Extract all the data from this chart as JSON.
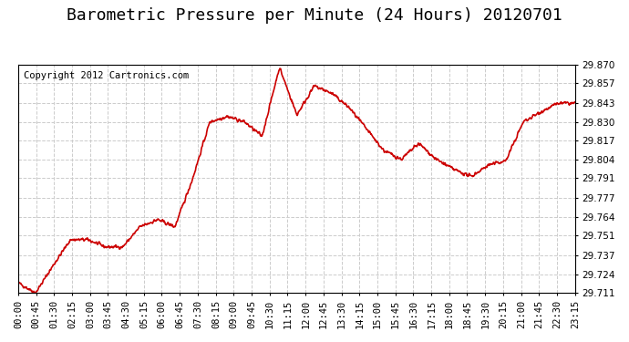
{
  "title": "Barometric Pressure per Minute (24 Hours) 20120701",
  "copyright": "Copyright 2012 Cartronics.com",
  "line_color": "#cc0000",
  "bg_color": "#ffffff",
  "plot_bg_color": "#ffffff",
  "grid_color": "#cccccc",
  "grid_style": "--",
  "ylim": [
    29.711,
    29.87
  ],
  "yticks": [
    29.711,
    29.724,
    29.737,
    29.751,
    29.764,
    29.777,
    29.791,
    29.804,
    29.817,
    29.83,
    29.843,
    29.857,
    29.87
  ],
  "xtick_labels": [
    "00:00",
    "00:45",
    "01:30",
    "02:15",
    "03:00",
    "03:45",
    "04:30",
    "05:15",
    "06:00",
    "06:45",
    "07:30",
    "08:15",
    "09:00",
    "09:45",
    "10:30",
    "11:15",
    "12:00",
    "12:45",
    "13:30",
    "14:15",
    "15:00",
    "15:45",
    "16:30",
    "17:15",
    "18:00",
    "18:45",
    "19:30",
    "20:15",
    "21:00",
    "21:45",
    "22:30",
    "23:15"
  ],
  "title_fontsize": 13,
  "tick_fontsize": 7.5,
  "copyright_fontsize": 7.5,
  "line_width": 1.2,
  "key_times": [
    0,
    45,
    90,
    135,
    180,
    225,
    270,
    315,
    360,
    405,
    450,
    495,
    540,
    585,
    630,
    675,
    720,
    765,
    810,
    855,
    900,
    945,
    990,
    1035,
    1080,
    1125,
    1170,
    1215,
    1260,
    1305,
    1350,
    1395,
    1439
  ],
  "key_values": [
    29.718,
    29.711,
    29.73,
    29.748,
    29.748,
    29.743,
    29.743,
    29.757,
    29.762,
    29.757,
    29.79,
    29.83,
    29.834,
    29.83,
    29.82,
    29.868,
    29.835,
    29.855,
    29.85,
    29.84,
    29.825,
    29.81,
    29.804,
    29.815,
    29.804,
    29.797,
    29.792,
    29.8,
    29.803,
    29.83,
    29.837,
    29.843,
    29.843
  ]
}
